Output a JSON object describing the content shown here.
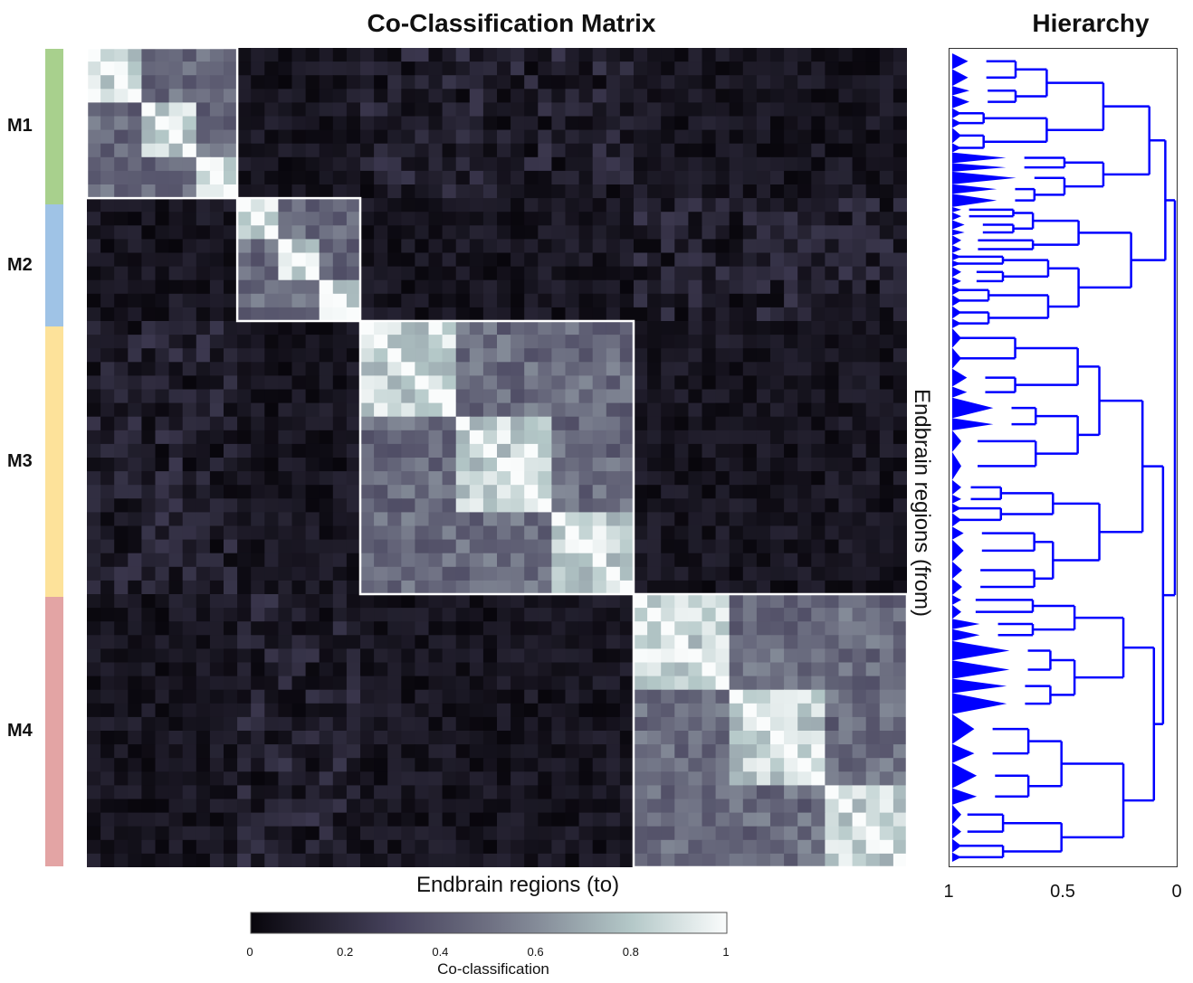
{
  "chart_data": [
    {
      "type": "heatmap",
      "title": "Co-Classification Matrix",
      "xlabel": "Endbrain regions (to)",
      "ylabel": "Endbrain regions (from)",
      "modules": [
        {
          "name": "M1",
          "color": "#a8d08d",
          "fraction": 0.19
        },
        {
          "name": "M2",
          "color": "#9fc3e6",
          "fraction": 0.15
        },
        {
          "name": "M3",
          "color": "#fde29a",
          "fraction": 0.33
        },
        {
          "name": "M4",
          "color": "#e3a4a4",
          "fraction": 0.33
        }
      ],
      "within_module_value_range": [
        0.35,
        1.0
      ],
      "between_module_value_range": [
        0.0,
        0.25
      ],
      "colorbar": {
        "label": "Co-classification",
        "ticks": [
          "0",
          "0.2",
          "0.4",
          "0.6",
          "0.8",
          "1"
        ],
        "range": [
          0,
          1
        ]
      },
      "grid": false
    },
    {
      "type": "dendrogram",
      "title": "Hierarchy",
      "x_ticks": [
        "1",
        "0.5",
        "0"
      ],
      "xlim": [
        1,
        0
      ],
      "line_color": "#0000ff",
      "top_merge_level": 0.0,
      "module_merge_levels": [
        0.12,
        0.2,
        0.15,
        0.1
      ]
    }
  ]
}
